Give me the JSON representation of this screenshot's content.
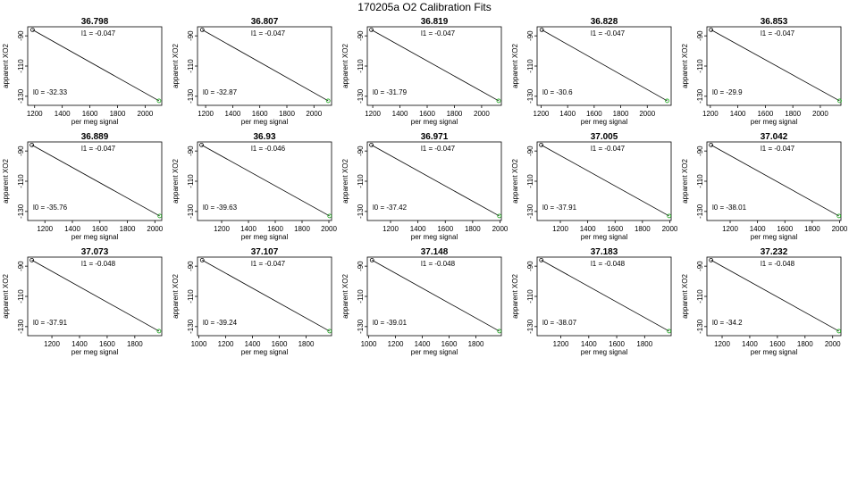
{
  "figure": {
    "title": "170205a   O2 Calibration Fits"
  },
  "chart_data": [
    {
      "type": "scatter",
      "title": "36.798",
      "xlabel": "per meg signal",
      "ylabel": "apparent XO2",
      "xlim": [
        1150,
        2120
      ],
      "ylim": [
        -136,
        -84
      ],
      "xticks": [
        1200,
        1400,
        1600,
        1800,
        2000
      ],
      "yticks": [
        -90,
        -110,
        -130
      ],
      "points": [
        {
          "x": 1185,
          "y": -86
        },
        {
          "x": 2100,
          "y": -133
        }
      ],
      "l1_label": "l1 =  -0.047",
      "l0_label": "l0 =  -32.33"
    },
    {
      "type": "scatter",
      "title": "36.807",
      "xlabel": "per meg signal",
      "ylabel": "apparent XO2",
      "xlim": [
        1140,
        2130
      ],
      "ylim": [
        -136,
        -84
      ],
      "xticks": [
        1200,
        1400,
        1600,
        1800,
        2000
      ],
      "yticks": [
        -90,
        -110,
        -130
      ],
      "points": [
        {
          "x": 1175,
          "y": -86
        },
        {
          "x": 2105,
          "y": -133
        }
      ],
      "l1_label": "l1 =  -0.047",
      "l0_label": "l0 =  -32.87"
    },
    {
      "type": "scatter",
      "title": "36.819",
      "xlabel": "per meg signal",
      "ylabel": "apparent XO2",
      "xlim": [
        1160,
        2145
      ],
      "ylim": [
        -136,
        -84
      ],
      "xticks": [
        1200,
        1400,
        1600,
        1800,
        2000
      ],
      "yticks": [
        -90,
        -110,
        -130
      ],
      "points": [
        {
          "x": 1190,
          "y": -86
        },
        {
          "x": 2125,
          "y": -133
        }
      ],
      "l1_label": "l1 =  -0.047",
      "l0_label": "l0 =  -31.79"
    },
    {
      "type": "scatter",
      "title": "36.828",
      "xlabel": "per meg signal",
      "ylabel": "apparent XO2",
      "xlim": [
        1170,
        2180
      ],
      "ylim": [
        -136,
        -84
      ],
      "xticks": [
        1200,
        1400,
        1600,
        1800,
        2000
      ],
      "yticks": [
        -90,
        -110,
        -130
      ],
      "points": [
        {
          "x": 1205,
          "y": -86
        },
        {
          "x": 2150,
          "y": -133
        }
      ],
      "l1_label": "l1 =  -0.047",
      "l0_label": "l0 =  -30.6"
    },
    {
      "type": "scatter",
      "title": "36.853",
      "xlabel": "per meg signal",
      "ylabel": "apparent XO2",
      "xlim": [
        1175,
        2150
      ],
      "ylim": [
        -136,
        -84
      ],
      "xticks": [
        1200,
        1400,
        1600,
        1800,
        2000
      ],
      "yticks": [
        -90,
        -110,
        -130
      ],
      "points": [
        {
          "x": 1205,
          "y": -86
        },
        {
          "x": 2140,
          "y": -133
        }
      ],
      "l1_label": "l1 =  -0.047",
      "l0_label": "l0 =  -29.9"
    },
    {
      "type": "scatter",
      "title": "36.889",
      "xlabel": "per meg signal",
      "ylabel": "apparent XO2",
      "xlim": [
        1075,
        2050
      ],
      "ylim": [
        -136,
        -84
      ],
      "xticks": [
        1200,
        1400,
        1600,
        1800,
        2000
      ],
      "yticks": [
        -90,
        -110,
        -130
      ],
      "points": [
        {
          "x": 1105,
          "y": -86
        },
        {
          "x": 2035,
          "y": -133
        }
      ],
      "l1_label": "l1 =  -0.047",
      "l0_label": "l0 =  -35.76"
    },
    {
      "type": "scatter",
      "title": "36.93",
      "xlabel": "per meg signal",
      "ylabel": "apparent XO2",
      "xlim": [
        1020,
        2020
      ],
      "ylim": [
        -136,
        -84
      ],
      "xticks": [
        1200,
        1400,
        1600,
        1800,
        2000
      ],
      "yticks": [
        -90,
        -110,
        -130
      ],
      "points": [
        {
          "x": 1050,
          "y": -86
        },
        {
          "x": 2005,
          "y": -133
        }
      ],
      "l1_label": "l1 =  -0.046",
      "l0_label": "l0 =  -39.63"
    },
    {
      "type": "scatter",
      "title": "36.971",
      "xlabel": "per meg signal",
      "ylabel": "apparent XO2",
      "xlim": [
        1030,
        2010
      ],
      "ylim": [
        -136,
        -84
      ],
      "xticks": [
        1200,
        1400,
        1600,
        1800,
        2000
      ],
      "yticks": [
        -90,
        -110,
        -130
      ],
      "points": [
        {
          "x": 1060,
          "y": -86
        },
        {
          "x": 1995,
          "y": -133
        }
      ],
      "l1_label": "l1 =  -0.047",
      "l0_label": "l0 =  -37.42"
    },
    {
      "type": "scatter",
      "title": "37.005",
      "xlabel": "per meg signal",
      "ylabel": "apparent XO2",
      "xlim": [
        1030,
        2010
      ],
      "ylim": [
        -136,
        -84
      ],
      "xticks": [
        1200,
        1400,
        1600,
        1800,
        2000
      ],
      "yticks": [
        -90,
        -110,
        -130
      ],
      "points": [
        {
          "x": 1060,
          "y": -86
        },
        {
          "x": 1995,
          "y": -133
        }
      ],
      "l1_label": "l1 =  -0.047",
      "l0_label": "l0 =  -37.91"
    },
    {
      "type": "scatter",
      "title": "37.042",
      "xlabel": "per meg signal",
      "ylabel": "apparent XO2",
      "xlim": [
        1030,
        2010
      ],
      "ylim": [
        -136,
        -84
      ],
      "xticks": [
        1200,
        1400,
        1600,
        1800,
        2000
      ],
      "yticks": [
        -90,
        -110,
        -130
      ],
      "points": [
        {
          "x": 1060,
          "y": -86
        },
        {
          "x": 1995,
          "y": -133
        }
      ],
      "l1_label": "l1 =  -0.047",
      "l0_label": "l0 =  -38.01"
    },
    {
      "type": "scatter",
      "title": "37.073",
      "xlabel": "per meg signal",
      "ylabel": "apparent XO2",
      "xlim": [
        1025,
        1995
      ],
      "ylim": [
        -136,
        -84
      ],
      "xticks": [
        1200,
        1400,
        1600,
        1800
      ],
      "yticks": [
        -90,
        -110,
        -130
      ],
      "points": [
        {
          "x": 1055,
          "y": -86
        },
        {
          "x": 1975,
          "y": -133
        }
      ],
      "l1_label": "l1 =  -0.048",
      "l0_label": "l0 =  -37.91"
    },
    {
      "type": "scatter",
      "title": "37.107",
      "xlabel": "per meg signal",
      "ylabel": "apparent XO2",
      "xlim": [
        990,
        1990
      ],
      "ylim": [
        -136,
        -84
      ],
      "xticks": [
        1000,
        1200,
        1400,
        1600,
        1800
      ],
      "yticks": [
        -90,
        -110,
        -130
      ],
      "points": [
        {
          "x": 1025,
          "y": -86
        },
        {
          "x": 1975,
          "y": -133
        }
      ],
      "l1_label": "l1 =  -0.047",
      "l0_label": "l0 =  -39.24"
    },
    {
      "type": "scatter",
      "title": "37.148",
      "xlabel": "per meg signal",
      "ylabel": "apparent XO2",
      "xlim": [
        990,
        1990
      ],
      "ylim": [
        -136,
        -84
      ],
      "xticks": [
        1000,
        1200,
        1400,
        1600,
        1800
      ],
      "yticks": [
        -90,
        -110,
        -130
      ],
      "points": [
        {
          "x": 1025,
          "y": -86
        },
        {
          "x": 1975,
          "y": -133
        }
      ],
      "l1_label": "l1 =  -0.048",
      "l0_label": "l0 =  -39.01"
    },
    {
      "type": "scatter",
      "title": "37.183",
      "xlabel": "per meg signal",
      "ylabel": "apparent XO2",
      "xlim": [
        1030,
        1990
      ],
      "ylim": [
        -136,
        -84
      ],
      "xticks": [
        1200,
        1400,
        1600,
        1800
      ],
      "yticks": [
        -90,
        -110,
        -130
      ],
      "points": [
        {
          "x": 1060,
          "y": -86
        },
        {
          "x": 1975,
          "y": -133
        }
      ],
      "l1_label": "l1 =  -0.048",
      "l0_label": "l0 =  -38.07"
    },
    {
      "type": "scatter",
      "title": "37.232",
      "xlabel": "per meg signal",
      "ylabel": "apparent XO2",
      "xlim": [
        1090,
        2060
      ],
      "ylim": [
        -136,
        -84
      ],
      "xticks": [
        1200,
        1400,
        1600,
        1800,
        2000
      ],
      "yticks": [
        -90,
        -110,
        -130
      ],
      "points": [
        {
          "x": 1120,
          "y": -86
        },
        {
          "x": 2045,
          "y": -133
        }
      ],
      "l1_label": "l1 =  -0.048",
      "l0_label": "l0 =  -34.2"
    }
  ],
  "colors": {
    "point_first": "#000000",
    "point_last": "#1aa81a",
    "line": "#000000",
    "axes": "#000000"
  }
}
